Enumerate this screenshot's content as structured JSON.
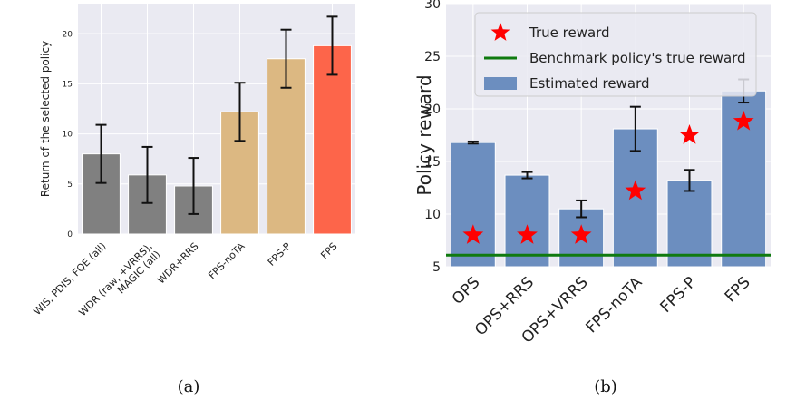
{
  "chart_data": [
    {
      "panel": "a",
      "type": "bar",
      "caption": "(a)",
      "ylabel": "Return of the selected policy",
      "xlabel": "",
      "ylim": [
        0,
        23
      ],
      "yticks": [
        0,
        5,
        10,
        15,
        20
      ],
      "grid": true,
      "categories": [
        "WIS, PDIS, FQE (all)",
        "WDR (raw, +VRRS),\nMAGIC (all)",
        "WDR+RRS",
        "FPS-noTA",
        "FPS-P",
        "FPS"
      ],
      "values": [
        8.0,
        5.9,
        4.8,
        12.2,
        17.5,
        18.8
      ],
      "error": [
        2.9,
        2.8,
        2.8,
        2.9,
        2.9,
        2.9
      ],
      "colors": [
        "#808080",
        "#808080",
        "#808080",
        "#dcb882",
        "#dcb882",
        "#fd654a"
      ]
    },
    {
      "panel": "b",
      "type": "bar",
      "caption": "(b)",
      "ylabel": "Policy reward",
      "xlabel": "",
      "ylim": [
        5,
        30
      ],
      "yticks": [
        5,
        10,
        15,
        20,
        25,
        30
      ],
      "grid": true,
      "legend": "top-left",
      "categories": [
        "OPS",
        "OPS+RRS",
        "OPS+VRRS",
        "FPS-noTA",
        "FPS-P",
        "FPS"
      ],
      "series": [
        {
          "name": "Estimated reward",
          "kind": "bar",
          "color": "#6c8ebf",
          "values": [
            16.8,
            13.7,
            10.5,
            18.1,
            13.2,
            21.7
          ],
          "error": [
            0.1,
            0.3,
            0.8,
            2.1,
            1.0,
            1.1
          ]
        },
        {
          "name": "True reward",
          "kind": "star",
          "color": "#ff0000",
          "values": [
            8.0,
            8.0,
            8.0,
            12.2,
            17.5,
            18.8
          ]
        },
        {
          "name": "Benchmark policy's true reward",
          "kind": "hline",
          "color": "#0f7a0f",
          "value": 6.1
        }
      ]
    }
  ]
}
